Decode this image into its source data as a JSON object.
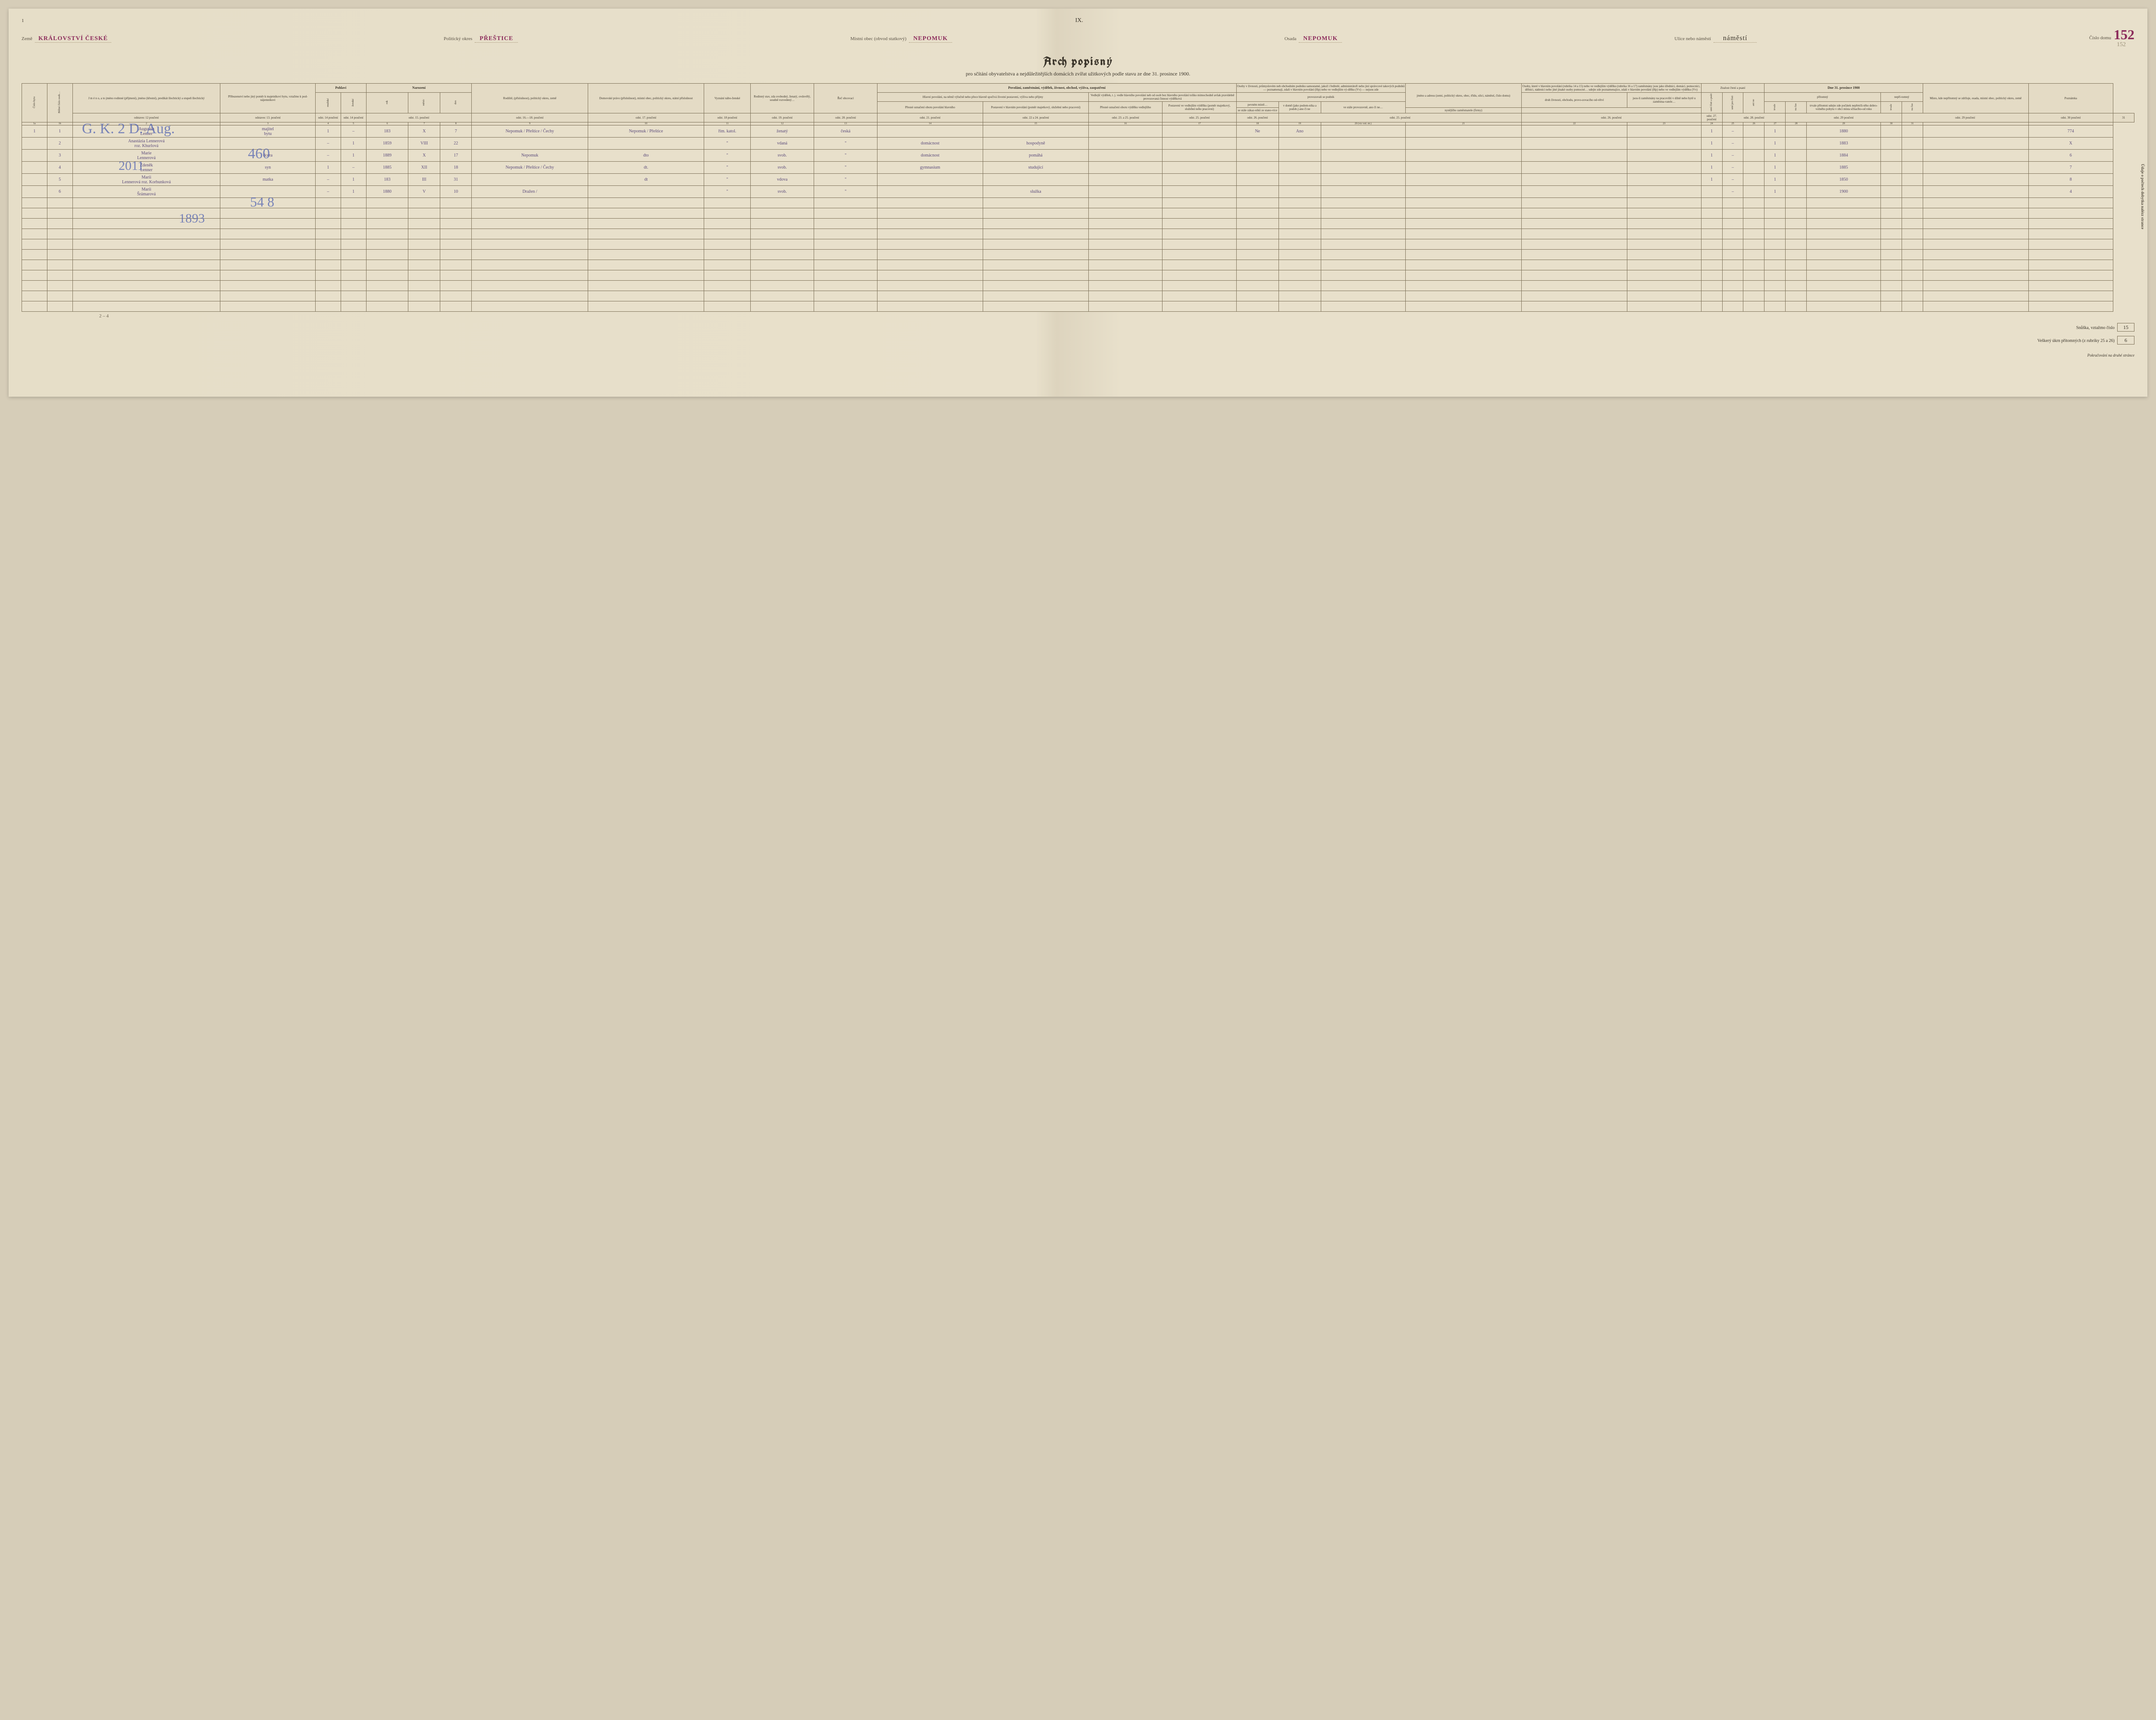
{
  "page_left_num": "1",
  "roman": "IX.",
  "house_number": "152",
  "pencil_house": "152",
  "meta": {
    "zeme_label": "Země",
    "zeme_value": "KRÁLOVSTVÍ ČESKÉ",
    "okres_label": "Politický okres",
    "okres_value": "PŘEŠTICE",
    "obec_label": "Místní obec (obvod statkový)",
    "obec_value": "Nepomuk",
    "osada_label": "Osada",
    "osada_value": "Nepomuk",
    "ulice_label": "Ulice nebo náměstí",
    "ulice_value": "náměstí",
    "cislo_label": "Číslo domu"
  },
  "title": "Arch popisný",
  "subtitle": "pro sčítání obyvatelstva a nejdůležitějších domácích zvířat užitkových podle stavu ze dne 31. prosince 1900.",
  "headers": {
    "cislo_bytu": "Číslo bytu",
    "bezne_cislo": "Běžné číslo osob…",
    "jmeno": "J m é n o, a to jméno rodinné (příjmení), jméno (křestní), predikát šlechtický a stupeň šlechtický",
    "pribuzenstvi": "Příbuzenství nebo jiný poměr k majetníkovi bytu, vztažmo k pod-nájemníkovi",
    "pohlavi": "Pohlaví",
    "pohlavi_m": "mužské",
    "pohlavi_z": "ženské",
    "narozeni": "Narození",
    "nar_rok": "rok",
    "nar_mesic": "měsíc",
    "nar_den": "den",
    "rodiste": "Rodiště, (příslušnost), politický okres, země",
    "domovske": "Domovské právo (příslušnost), místní obec, politický okres, státní příslušnost",
    "vyznani": "Vyznání nábo-ženské",
    "stav": "Rodinný stav, zda svobodný, ženatý, ovdovělý, soudně rozvedený…",
    "rec": "Řeč obcovací",
    "povolani_group": "Povolání, zaměstnání, výdělek, živnost, obchod, výživa, zaopatření",
    "hlavni_povolani": "Hlavní povolání, na němž výlučně nebo přece hlavně spočívá životní postavení, výživa nebo příjmy",
    "presne_oboru": "Přesné označení oboru povolání hlavního",
    "postaveni_hlav": "Postavení v hlavním povolání (poměr majetkový, služební nebo pracovní)",
    "vedlejsi": "Vedlejší výdělek, t. j. vedle hlavního povolání neb od osob bez hlavního povolání toliko mimochodně avšak pravidelně provozovaná činnost výdělková",
    "presne_vedl": "Přesné označení oboru výdělku vedlejšího",
    "postaveni_vedl": "Postavení ve vedlejším výdělku (poměr majetkový, služební nebo pracovní)",
    "osoby_group": "Osoby v živnosti, průmyslovém neb obchodním podniku samostatné, jakož i ředitelé, administrátoři nebo jiní správcové takových podniků — poznamenají, zdali v hlavním povolání (Hp) nebo ve vedlejším vý-dělku (Vv) — nejsou zde",
    "provozuji": "provozovali se podnik",
    "pevnem": "pevném místě…",
    "v_dome": "v domě (jako podom-níka a podob.) ano či ne",
    "zakaz": "se stále zákaz-níků ze stano-více",
    "stale_prov": "ve stále provozovně, ano či ne…",
    "jmeno_adresu": "jméno a adresu (zemi, politický okres, obec, třídu, ulici, náměstí, číslo domu)",
    "osoby15": "Osoby, které v hlavním povolání (rubrika 14 a 15) nebo ve vedlejším výdělku (rubrika 16 a 17) zaměstnány jsou jako úředníci, domácí, pomocníci, dělníci, nádeníci nebo jiné jinaké osoby pomocné… udejte zde poznamenajíce, zdali v hlavním povolání (Hp) nebo ve vedlejším výdělku (Vv)",
    "druh_zivnosti": "druh živnosti, obchodu, provo-zovacího od-větví",
    "jsou_zamest": "jsou-li zaměstnány na pracovišti v dílně nebo bytě u zaměstna-vatele…",
    "nynejsi": "nynějšího zaměstnatele (firmy)",
    "znalost": "Znalost čtení a psaní",
    "umi_cist": "umí čísti a psáti",
    "umi_jen": "umí jen čísti",
    "ani": "ani ne",
    "dne31": "Dne 31. prosince 1900",
    "pritomny": "přítomný",
    "nepritomny": "nepří-tomný",
    "trvale": "trvale",
    "nacas": "na čas",
    "trvale_prit": "trvale přítomni udejte zde počátek nepřetrži-tého dobro-volného pobytu v obci místa sčítacího-od roku",
    "misto_kde": "Místo, kde nepřítomný se zdržuje, osada, místní obec, politický okres, země",
    "poznamka": "Poznámka",
    "side_right": "Údaje o počtech dobytka nalézz strance",
    "odst12": "odstavec 12 poučení",
    "odst13": "odstavec 13. poučení",
    "odst14": "odst. 14 poučení",
    "odst15": "odst. 15. poučení",
    "odst1618": "odst. 16.—18. poučení",
    "odst17": "odst. 17. poučení",
    "odst18": "odst. 18 poučení",
    "odst19": "odst. 19. poučení",
    "odst20": "odst. 20. poučení",
    "odst21": "odst. 21. poučení",
    "odst2224": "odst. 22 a 24. poučení",
    "odst2325": "odst. 23. a 25. poučení",
    "odst25": "odst. 25. poučení",
    "odst26": "odst. 26. poučení",
    "odst25p": "odst. 25. poučení",
    "odst26p": "odst. 26. poučení",
    "odst27": "odst. 27. poučení",
    "odst28": "odst. 28. poučení",
    "odst29": "odst. 29 poučení",
    "odst30": "odst. 30 poučení",
    "zde_bud": "Zde buď napsáno toliko ano nebo ne…"
  },
  "col_nums": [
    "1a",
    "1b",
    "2",
    "3",
    "4",
    "5",
    "6",
    "7",
    "8",
    "9",
    "10",
    "11",
    "12",
    "13",
    "14",
    "15",
    "16",
    "17",
    "18",
    "19",
    "20 (viz vzd. str.)",
    "21",
    "22",
    "23",
    "24",
    "25",
    "26",
    "27",
    "28",
    "29",
    "30",
    "31"
  ],
  "rows": [
    {
      "byt": "1",
      "num": "1",
      "jmeno_top": "Augustin",
      "jmeno": "Lenner",
      "vztah_top": "majitel",
      "vztah": "bytu",
      "m": "1",
      "z": "–",
      "rok": "183",
      "mesic": "X",
      "den": "7",
      "rodiste": "Nepomuk / Přeštice / Čechy",
      "domov": "Nepomuk / Přeštice",
      "vyzn": "řím. katol.",
      "stav": "ženatý",
      "rec": "česká",
      "oboru": "",
      "postav": "",
      "vedl": "",
      "c18": "Ne",
      "c19": "Ano",
      "c23": "1",
      "c25": "–",
      "c27": "1",
      "rok_pobyt": "1880",
      "pozn": "774"
    },
    {
      "byt": "",
      "num": "2",
      "jmeno_top": "Anastázia Lennerová",
      "jmeno": "roz. Khurlová",
      "vztah": "",
      "m": "–",
      "z": "1",
      "rok": "1859",
      "mesic": "VIII",
      "den": "22",
      "rodiste": "",
      "domov": "",
      "vyzn": "\"",
      "stav": "vdaná",
      "rec": "\"",
      "oboru": "domácnost",
      "postav": "hospodyně",
      "vedl": "",
      "c23": "1",
      "c25": "–",
      "c27": "1",
      "rok_pobyt": "1883",
      "pozn": "X"
    },
    {
      "byt": "",
      "num": "3",
      "jmeno_top": "Marie",
      "jmeno": "Lennerová",
      "vztah": "dcera",
      "m": "–",
      "z": "1",
      "rok": "1889",
      "mesic": "X",
      "den": "17",
      "rodiste": "Nepomuk",
      "domov": "dto",
      "vyzn": "\"",
      "stav": "svob.",
      "rec": "\"",
      "oboru": "domácnost",
      "postav": "pomáhá",
      "c23": "1",
      "c25": "–",
      "c27": "1",
      "rok_pobyt": "1884",
      "pozn": "6"
    },
    {
      "byt": "",
      "num": "4",
      "jmeno_top": "Zdeněk",
      "jmeno": "Lenner",
      "vztah": "syn",
      "m": "1",
      "z": "–",
      "rok": "1885",
      "mesic": "XII",
      "den": "18",
      "rodiste": "Nepomuk / Přeštice / Čechy",
      "domov": "dt.",
      "vyzn": "\"",
      "stav": "svob.",
      "rec": "\"",
      "oboru": "gymnasium",
      "postav": "studující",
      "c23": "1",
      "c25": "–",
      "c27": "1",
      "rok_pobyt": "1885",
      "pozn": "7"
    },
    {
      "byt": "",
      "num": "5",
      "jmeno_top": "Marii",
      "jmeno": "Lennerová roz. Korbunková",
      "vztah": "matka",
      "m": "–",
      "z": "1",
      "rok": "183",
      "mesic": "III",
      "den": "31",
      "rodiste": "",
      "domov": "dt",
      "vyzn": "\"",
      "stav": "vdova",
      "rec": "\"",
      "oboru": "",
      "postav": "",
      "c23": "1",
      "c25": "–",
      "c27": "1",
      "rok_pobyt": "1850",
      "pozn": "8"
    },
    {
      "byt": "",
      "num": "6",
      "jmeno_top": "Marii",
      "jmeno": "Šrámarová",
      "vztah": "",
      "m": "–",
      "z": "1",
      "rok": "1880",
      "mesic": "V",
      "den": "10",
      "rodiste": "Dražen / ",
      "domov": "",
      "vyzn": "\"",
      "stav": "svob.",
      "rec": "\"",
      "oboru": "",
      "postav": "služka",
      "c23": "",
      "c25": "–",
      "c27": "1",
      "rok_pobyt": "1900",
      "pozn": "4"
    }
  ],
  "footer": {
    "snuska_label": "Snůška, vztažmo číslo",
    "snuska_val": "15",
    "ukrn_label": "Veškerý úkrn přítomných (z rubriky 25 a 26)",
    "ukrn_val": "6",
    "continue": "Pokračování na druhé stránce"
  },
  "bottom_note": "2 – 4",
  "overlay1": "G. K. 2 D. Aug.",
  "overlay2": "2011",
  "overlay3": "460",
  "overlay4": "54 8",
  "overlay5": "1893"
}
